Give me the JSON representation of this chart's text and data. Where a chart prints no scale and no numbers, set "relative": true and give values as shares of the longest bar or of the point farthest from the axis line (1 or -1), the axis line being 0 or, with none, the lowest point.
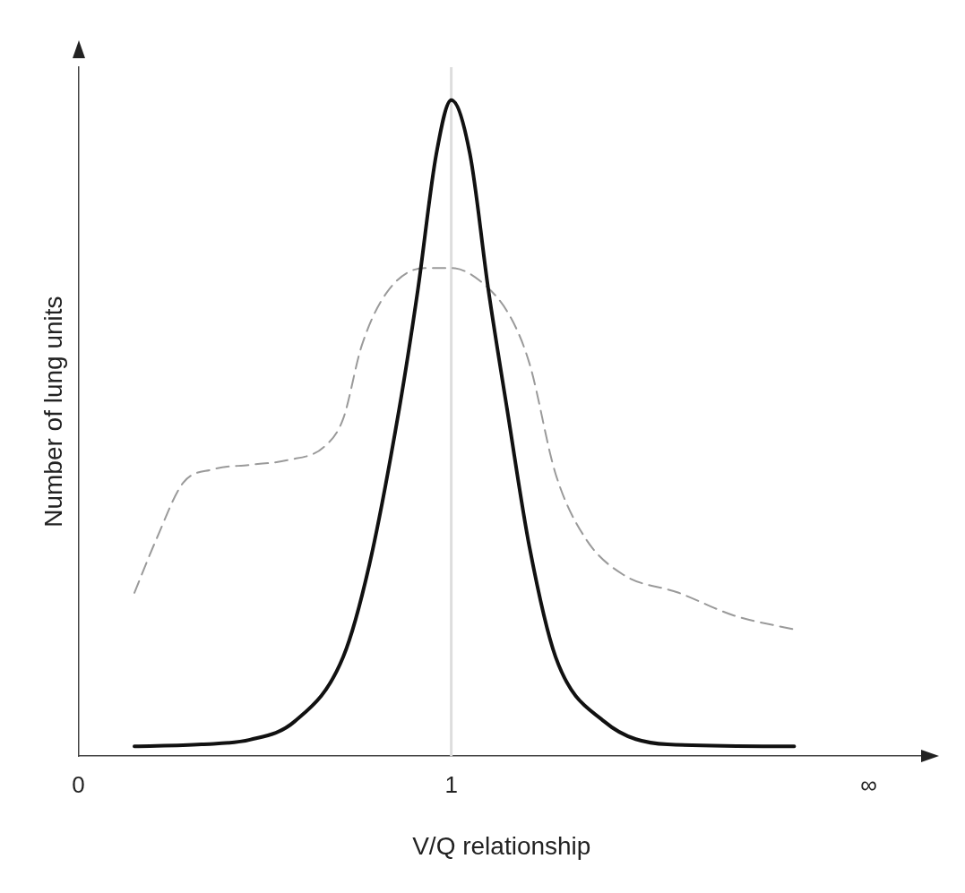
{
  "chart_data": {
    "type": "line",
    "relative": true,
    "xlabel": "V/Q relationship",
    "ylabel": "Number of lung units",
    "xlim": [
      0,
      2.27
    ],
    "xticks": [
      {
        "value": 0,
        "label": "0"
      },
      {
        "value": 1,
        "label": "1"
      },
      {
        "value": 2.12,
        "label": "∞"
      }
    ],
    "grid": false,
    "legend": false,
    "marker": "none",
    "ref_lines": [
      {
        "axis": "x",
        "value": 1,
        "color": "#dddddd"
      }
    ],
    "series": [
      {
        "color": "#111111",
        "line_style": "solid",
        "x": [
          0.15,
          0.33,
          0.46,
          0.58,
          0.71,
          0.78,
          0.86,
          0.91,
          0.96,
          1.0,
          1.05,
          1.1,
          1.15,
          1.21,
          1.28,
          1.41,
          1.58,
          1.92
        ],
        "values": [
          0.015,
          0.018,
          0.025,
          0.053,
          0.151,
          0.291,
          0.528,
          0.709,
          0.918,
          1.0,
          0.918,
          0.709,
          0.528,
          0.318,
          0.151,
          0.053,
          0.018,
          0.015
        ]
      },
      {
        "color": "#9a9a9a",
        "line_style": "dashed",
        "x": [
          0.15,
          0.21,
          0.28,
          0.36,
          0.46,
          0.56,
          0.66,
          0.71,
          0.76,
          0.83,
          0.93,
          1.0,
          1.08,
          1.16,
          1.21,
          1.28,
          1.36,
          1.46,
          1.61,
          1.76,
          1.92
        ],
        "values": [
          0.249,
          0.332,
          0.416,
          0.437,
          0.444,
          0.451,
          0.472,
          0.514,
          0.626,
          0.709,
          0.744,
          0.744,
          0.723,
          0.668,
          0.598,
          0.43,
          0.332,
          0.277,
          0.249,
          0.214,
          0.193
        ]
      }
    ]
  }
}
